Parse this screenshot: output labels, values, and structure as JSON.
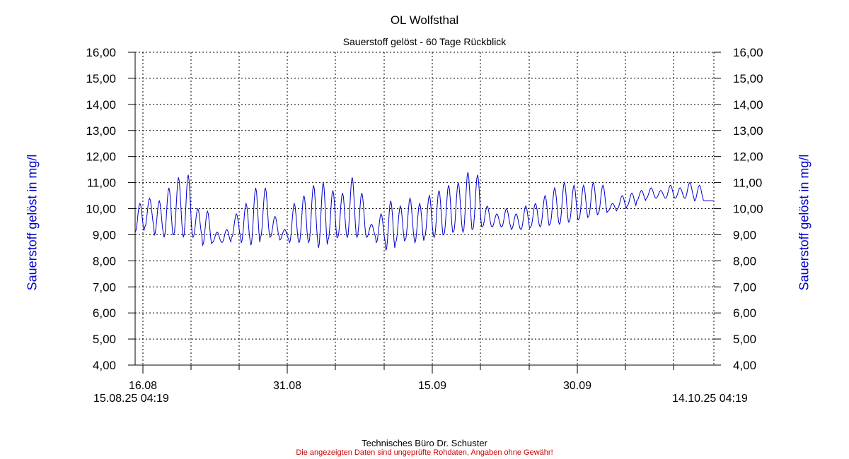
{
  "chart_data": {
    "type": "line",
    "title": "OL Wolfsthal",
    "subtitle": "Sauerstoff gelöst - 60 Tage Rückblick",
    "ylabel": "Sauerstoff gelöst in mg/l",
    "ylim": [
      4,
      16
    ],
    "yticks": [
      "4,00",
      "5,00",
      "6,00",
      "7,00",
      "8,00",
      "9,00",
      "10,00",
      "11,00",
      "12,00",
      "13,00",
      "14,00",
      "15,00",
      "16,00"
    ],
    "xtick_labels": [
      "16.08",
      "31.08",
      "15.09",
      "30.09"
    ],
    "range_start": "15.08.25 04:19",
    "range_end": "14.10.25 04:19",
    "grid": true,
    "series": [
      {
        "color": "#0000cc",
        "daily_min": [
          9.1,
          9.3,
          9.0,
          8.9,
          9.0,
          8.9,
          8.9,
          8.6,
          8.7,
          8.7,
          8.9,
          8.7,
          8.6,
          8.9,
          8.9,
          8.8,
          8.7,
          8.7,
          8.7,
          8.5,
          8.8,
          8.9,
          8.9,
          8.9,
          8.9,
          8.7,
          8.4,
          8.7,
          8.8,
          8.7,
          8.9,
          8.9,
          9.0,
          9.1,
          9.1,
          9.2,
          9.3,
          9.3,
          9.3,
          9.2,
          9.2,
          9.3,
          9.3,
          9.4,
          9.4,
          9.5,
          9.6,
          9.7,
          9.8,
          9.9,
          10.0,
          10.1,
          10.3,
          10.4,
          10.4,
          10.4,
          10.4,
          10.4,
          10.3,
          10.3
        ],
        "daily_max": [
          10.2,
          10.4,
          10.3,
          10.8,
          11.2,
          11.3,
          10.0,
          9.9,
          9.1,
          9.2,
          9.8,
          10.2,
          10.8,
          10.8,
          9.7,
          9.2,
          10.2,
          10.5,
          10.9,
          11.0,
          10.7,
          10.6,
          11.2,
          10.6,
          9.4,
          9.8,
          10.3,
          10.1,
          10.4,
          10.2,
          10.5,
          10.7,
          10.9,
          11.0,
          11.4,
          11.3,
          10.1,
          9.8,
          10.0,
          9.8,
          10.1,
          10.2,
          10.5,
          10.8,
          11.0,
          10.9,
          10.9,
          11.0,
          10.9,
          10.2,
          10.5,
          10.6,
          10.7,
          10.8,
          10.7,
          10.9,
          10.8,
          11.0,
          10.9,
          10.3
        ]
      }
    ]
  },
  "footer": {
    "credit": "Technisches Büro Dr. Schuster",
    "disclaimer": "Die angezeigten Daten sind ungeprüfte Rohdaten, Angaben ohne Gewähr!"
  }
}
